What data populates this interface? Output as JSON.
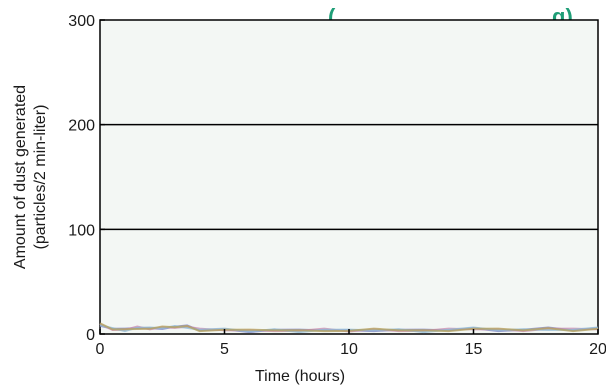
{
  "chart_data": {
    "type": "line",
    "title_fragment": "(",
    "title_fragment_right": "g)",
    "xlabel": "Time (hours)",
    "ylabel_line1": "Amount of dust generated",
    "ylabel_line2": "(particles/2 min-liter)",
    "xlim": [
      0,
      20
    ],
    "ylim": [
      0,
      300
    ],
    "x_ticks": [
      "0",
      "5",
      "10",
      "15",
      "20"
    ],
    "y_ticks": [
      "0",
      "100",
      "200",
      "300"
    ],
    "grid": true,
    "baseline_noise": {
      "x": [
        0,
        0.5,
        1,
        1.5,
        2,
        2.5,
        3,
        3.5,
        4,
        5,
        6,
        7,
        8,
        9,
        10,
        11,
        12,
        13,
        14,
        15,
        16,
        17,
        18,
        19,
        20
      ],
      "y": [
        9,
        5,
        4,
        6,
        5,
        6,
        7,
        7,
        4,
        4,
        3,
        4,
        3,
        4,
        3,
        4,
        4,
        3,
        4,
        5,
        4,
        4,
        5,
        4,
        5
      ]
    },
    "colors": {
      "title": "#1f9e77",
      "plot_bg": "#f3f7f4",
      "noise": [
        "#7b7fc4",
        "#c98bb0",
        "#8fb9d6",
        "#b6a25a"
      ]
    }
  }
}
